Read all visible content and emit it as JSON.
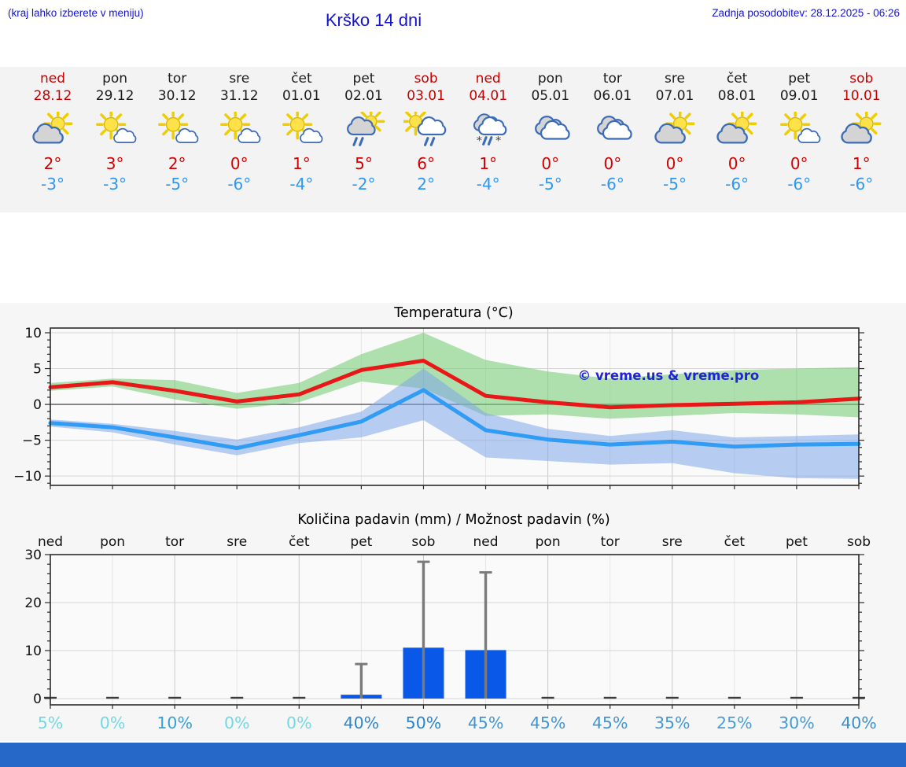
{
  "header": {
    "hint": "(kraj lahko izberete v meniju)",
    "title": "Krško 14 dni",
    "updated": "Zadnja posodobitev: 28.12.2025 - 06:26",
    "text_color": "#1414cc"
  },
  "strip": {
    "bg": "#f3f3f3",
    "weekend_color": "#c80000",
    "weekday_color": "#1c1c1c",
    "tmax_color": "#d20000",
    "tmin_color": "#2e97f2",
    "days": [
      {
        "day": "ned",
        "date": "28.12",
        "weekend": true,
        "icon": "sun-gray-cloud",
        "icon_name": "sun-behind-cloud-icon",
        "tmax": "2°",
        "tmin": "-3°"
      },
      {
        "day": "pon",
        "date": "29.12",
        "weekend": false,
        "icon": "sun-small-cloud",
        "icon_name": "mostly-sunny-icon",
        "tmax": "3°",
        "tmin": "-3°"
      },
      {
        "day": "tor",
        "date": "30.12",
        "weekend": false,
        "icon": "sun-small-cloud",
        "icon_name": "mostly-sunny-icon",
        "tmax": "2°",
        "tmin": "-5°"
      },
      {
        "day": "sre",
        "date": "31.12",
        "weekend": false,
        "icon": "sun-small-cloud",
        "icon_name": "mostly-sunny-icon",
        "tmax": "0°",
        "tmin": "-6°"
      },
      {
        "day": "čet",
        "date": "01.01",
        "weekend": false,
        "icon": "sun-small-cloud",
        "icon_name": "mostly-sunny-icon",
        "tmax": "1°",
        "tmin": "-4°"
      },
      {
        "day": "pet",
        "date": "02.01",
        "weekend": false,
        "icon": "sun-gray-cloud-rain",
        "icon_name": "sun-shower-icon",
        "tmax": "5°",
        "tmin": "-2°"
      },
      {
        "day": "sob",
        "date": "03.01",
        "weekend": true,
        "icon": "sun-white-cloud-rain",
        "icon_name": "sun-shower-icon",
        "tmax": "6°",
        "tmin": "2°"
      },
      {
        "day": "ned",
        "date": "04.01",
        "weekend": true,
        "icon": "clouds-sleet",
        "icon_name": "rain-snow-mix-icon",
        "tmax": "1°",
        "tmin": "-4°"
      },
      {
        "day": "pon",
        "date": "05.01",
        "weekend": false,
        "icon": "cloudy",
        "icon_name": "cloudy-icon",
        "tmax": "0°",
        "tmin": "-5°"
      },
      {
        "day": "tor",
        "date": "06.01",
        "weekend": false,
        "icon": "cloudy",
        "icon_name": "cloudy-icon",
        "tmax": "0°",
        "tmin": "-6°"
      },
      {
        "day": "sre",
        "date": "07.01",
        "weekend": false,
        "icon": "sun-gray-cloud",
        "icon_name": "sun-behind-cloud-icon",
        "tmax": "0°",
        "tmin": "-5°"
      },
      {
        "day": "čet",
        "date": "08.01",
        "weekend": false,
        "icon": "sun-gray-cloud",
        "icon_name": "sun-behind-cloud-icon",
        "tmax": "0°",
        "tmin": "-6°"
      },
      {
        "day": "pet",
        "date": "09.01",
        "weekend": false,
        "icon": "sun-small-cloud",
        "icon_name": "mostly-sunny-icon",
        "tmax": "0°",
        "tmin": "-6°"
      },
      {
        "day": "sob",
        "date": "10.01",
        "weekend": true,
        "icon": "sun-gray-cloud",
        "icon_name": "sun-behind-cloud-icon",
        "tmax": "1°",
        "tmin": "-6°"
      }
    ]
  },
  "chart_data": [
    {
      "type": "line",
      "title": "Temperatura (°C)",
      "watermark": "© vreme.us & vreme.pro",
      "watermark_color": "#2323d6",
      "x_categories": [
        "ned",
        "pon",
        "tor",
        "sre",
        "čet",
        "pet",
        "sob",
        "ned",
        "pon",
        "tor",
        "sre",
        "čet",
        "pet",
        "sob"
      ],
      "ylim": [
        -11.3,
        10.66
      ],
      "yticks": [
        -10,
        -5,
        0,
        5,
        10
      ],
      "grid": true,
      "series": [
        {
          "name": "max-temperature",
          "color": "#e81818",
          "values": [
            2.4,
            3.1,
            1.9,
            0.4,
            1.4,
            4.8,
            6.1,
            1.2,
            0.3,
            -0.4,
            -0.1,
            0.1,
            0.3,
            0.8
          ]
        },
        {
          "name": "min-temperature",
          "color": "#319cf4",
          "values": [
            -2.6,
            -3.2,
            -4.6,
            -6.1,
            -4.3,
            -2.4,
            2.0,
            -3.6,
            -4.9,
            -5.6,
            -5.2,
            -5.9,
            -5.6,
            -5.5
          ]
        }
      ],
      "bands": [
        {
          "name": "max-temperature-range",
          "color": "#7ccf7c",
          "opacity": 0.6,
          "upper": [
            3.0,
            3.6,
            3.4,
            1.6,
            3.0,
            7.0,
            10.0,
            6.2,
            4.6,
            3.6,
            4.2,
            4.8,
            5.0,
            5.2
          ],
          "lower": [
            1.9,
            2.5,
            0.7,
            -0.6,
            0.3,
            3.2,
            2.2,
            -1.6,
            -1.4,
            -2.0,
            -1.6,
            -1.2,
            -1.4,
            -1.8
          ]
        },
        {
          "name": "min-temperature-range",
          "color": "#7fa6ea",
          "opacity": 0.55,
          "upper": [
            -2.1,
            -2.7,
            -3.7,
            -4.9,
            -3.2,
            -1.0,
            5.0,
            -1.2,
            -3.4,
            -4.4,
            -3.6,
            -4.6,
            -4.4,
            -4.2
          ],
          "lower": [
            -3.1,
            -3.9,
            -5.6,
            -7.1,
            -5.4,
            -4.6,
            -2.2,
            -7.4,
            -7.9,
            -8.4,
            -8.2,
            -9.6,
            -10.3,
            -10.4
          ]
        }
      ]
    },
    {
      "type": "bar",
      "title": "Količina padavin (mm) / Možnost padavin (%)",
      "day_labels": [
        "ned",
        "pon",
        "tor",
        "sre",
        "čet",
        "pet",
        "sob",
        "ned",
        "pon",
        "tor",
        "sre",
        "čet",
        "pet",
        "sob"
      ],
      "ylim": [
        -1.3,
        30
      ],
      "yticks": [
        0,
        10,
        20,
        30
      ],
      "grid": true,
      "bar_color": "#0958e8",
      "zero_dash_color": "#3c3c3c",
      "error_color": "#7a7a7a",
      "values": [
        0,
        0,
        0,
        0,
        0,
        0.8,
        10.6,
        10.1,
        0,
        0,
        0,
        0,
        0,
        0
      ],
      "error_max": [
        0,
        0,
        0,
        0,
        0,
        7.2,
        28.5,
        26.3,
        0,
        0,
        0,
        0,
        0,
        0
      ],
      "probabilities": [
        {
          "label": "5%",
          "color": "#74d8e4"
        },
        {
          "label": "0%",
          "color": "#74d8e4"
        },
        {
          "label": "10%",
          "color": "#35a1d6"
        },
        {
          "label": "0%",
          "color": "#74d8e4"
        },
        {
          "label": "0%",
          "color": "#74d8e4"
        },
        {
          "label": "40%",
          "color": "#2e86ca"
        },
        {
          "label": "50%",
          "color": "#2b83c9"
        },
        {
          "label": "45%",
          "color": "#4096d1"
        },
        {
          "label": "45%",
          "color": "#4096d1"
        },
        {
          "label": "45%",
          "color": "#4096d1"
        },
        {
          "label": "35%",
          "color": "#4498d2"
        },
        {
          "label": "25%",
          "color": "#4a9ed6"
        },
        {
          "label": "30%",
          "color": "#459ad3"
        },
        {
          "label": "40%",
          "color": "#3890cd"
        }
      ]
    }
  ],
  "footer": {
    "bar_color": "#2668c8"
  }
}
